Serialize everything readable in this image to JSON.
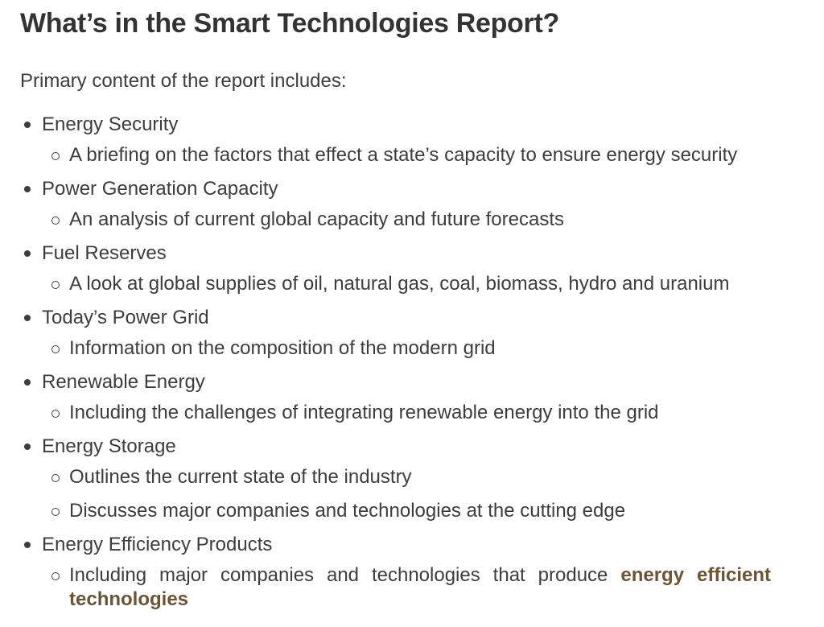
{
  "page": {
    "title": "What’s in the Smart Technologies Report?",
    "intro": "Primary content of the report includes:"
  },
  "colors": {
    "heading": "#333333",
    "text": "#3d3d3d",
    "highlight": "#6b5535"
  },
  "sections": [
    {
      "topic": "Energy Security",
      "details": [
        {
          "text": "A briefing on the factors that effect a state’s capacity to ensure energy security"
        }
      ]
    },
    {
      "topic": "Power Generation Capacity",
      "details": [
        {
          "text": "An analysis of current global capacity and future forecasts"
        }
      ]
    },
    {
      "topic": "Fuel Reserves",
      "details": [
        {
          "text": "A look at global supplies of oil, natural gas, coal, biomass, hydro and uranium"
        }
      ]
    },
    {
      "topic": "Today’s Power Grid",
      "details": [
        {
          "text": "Information on the composition of the modern grid"
        }
      ]
    },
    {
      "topic": "Renewable Energy",
      "details": [
        {
          "text": "Including the challenges of integrating renewable energy into the grid"
        }
      ]
    },
    {
      "topic": "Energy Storage",
      "details": [
        {
          "text": "Outlines the current state of the industry"
        },
        {
          "text": "Discusses major companies and technologies at the cutting edge"
        }
      ]
    },
    {
      "topic": "Energy Efficiency Products",
      "details": [
        {
          "prefix": "Including major companies and technologies that produce ",
          "highlight": "energy efficient technologies"
        }
      ]
    }
  ]
}
